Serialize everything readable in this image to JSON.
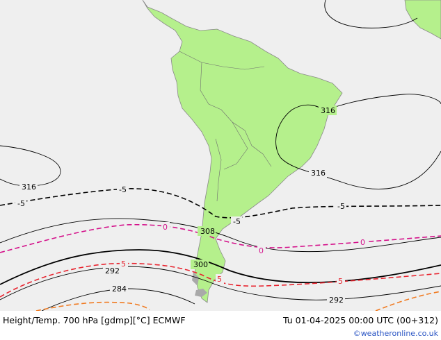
{
  "map": {
    "colors": {
      "land": "#b5f08c",
      "ocean": "#efefef",
      "coast": "#8a8a8a",
      "island": "#a9a9a9",
      "height_contour": "#000000",
      "temp_neg5": "#000000",
      "temp_0": "#d4108a",
      "temp_pos5": "#e8242f",
      "temp_pos10": "#f07a20"
    },
    "height_labels": [
      "316",
      "316",
      "316",
      "308",
      "300",
      "292",
      "292",
      "284"
    ],
    "temp_labels": [
      "-5",
      "-5",
      "-5",
      "-5",
      "0",
      "0",
      "0",
      "5",
      "5",
      "5"
    ]
  },
  "footer": {
    "title": "Height/Temp. 700 hPa [gdmp][°C] ECMWF",
    "valid_time": "Tu 01-04-2025 00:00 UTC (00+312)",
    "credit": "©weatheronline.co.uk"
  }
}
